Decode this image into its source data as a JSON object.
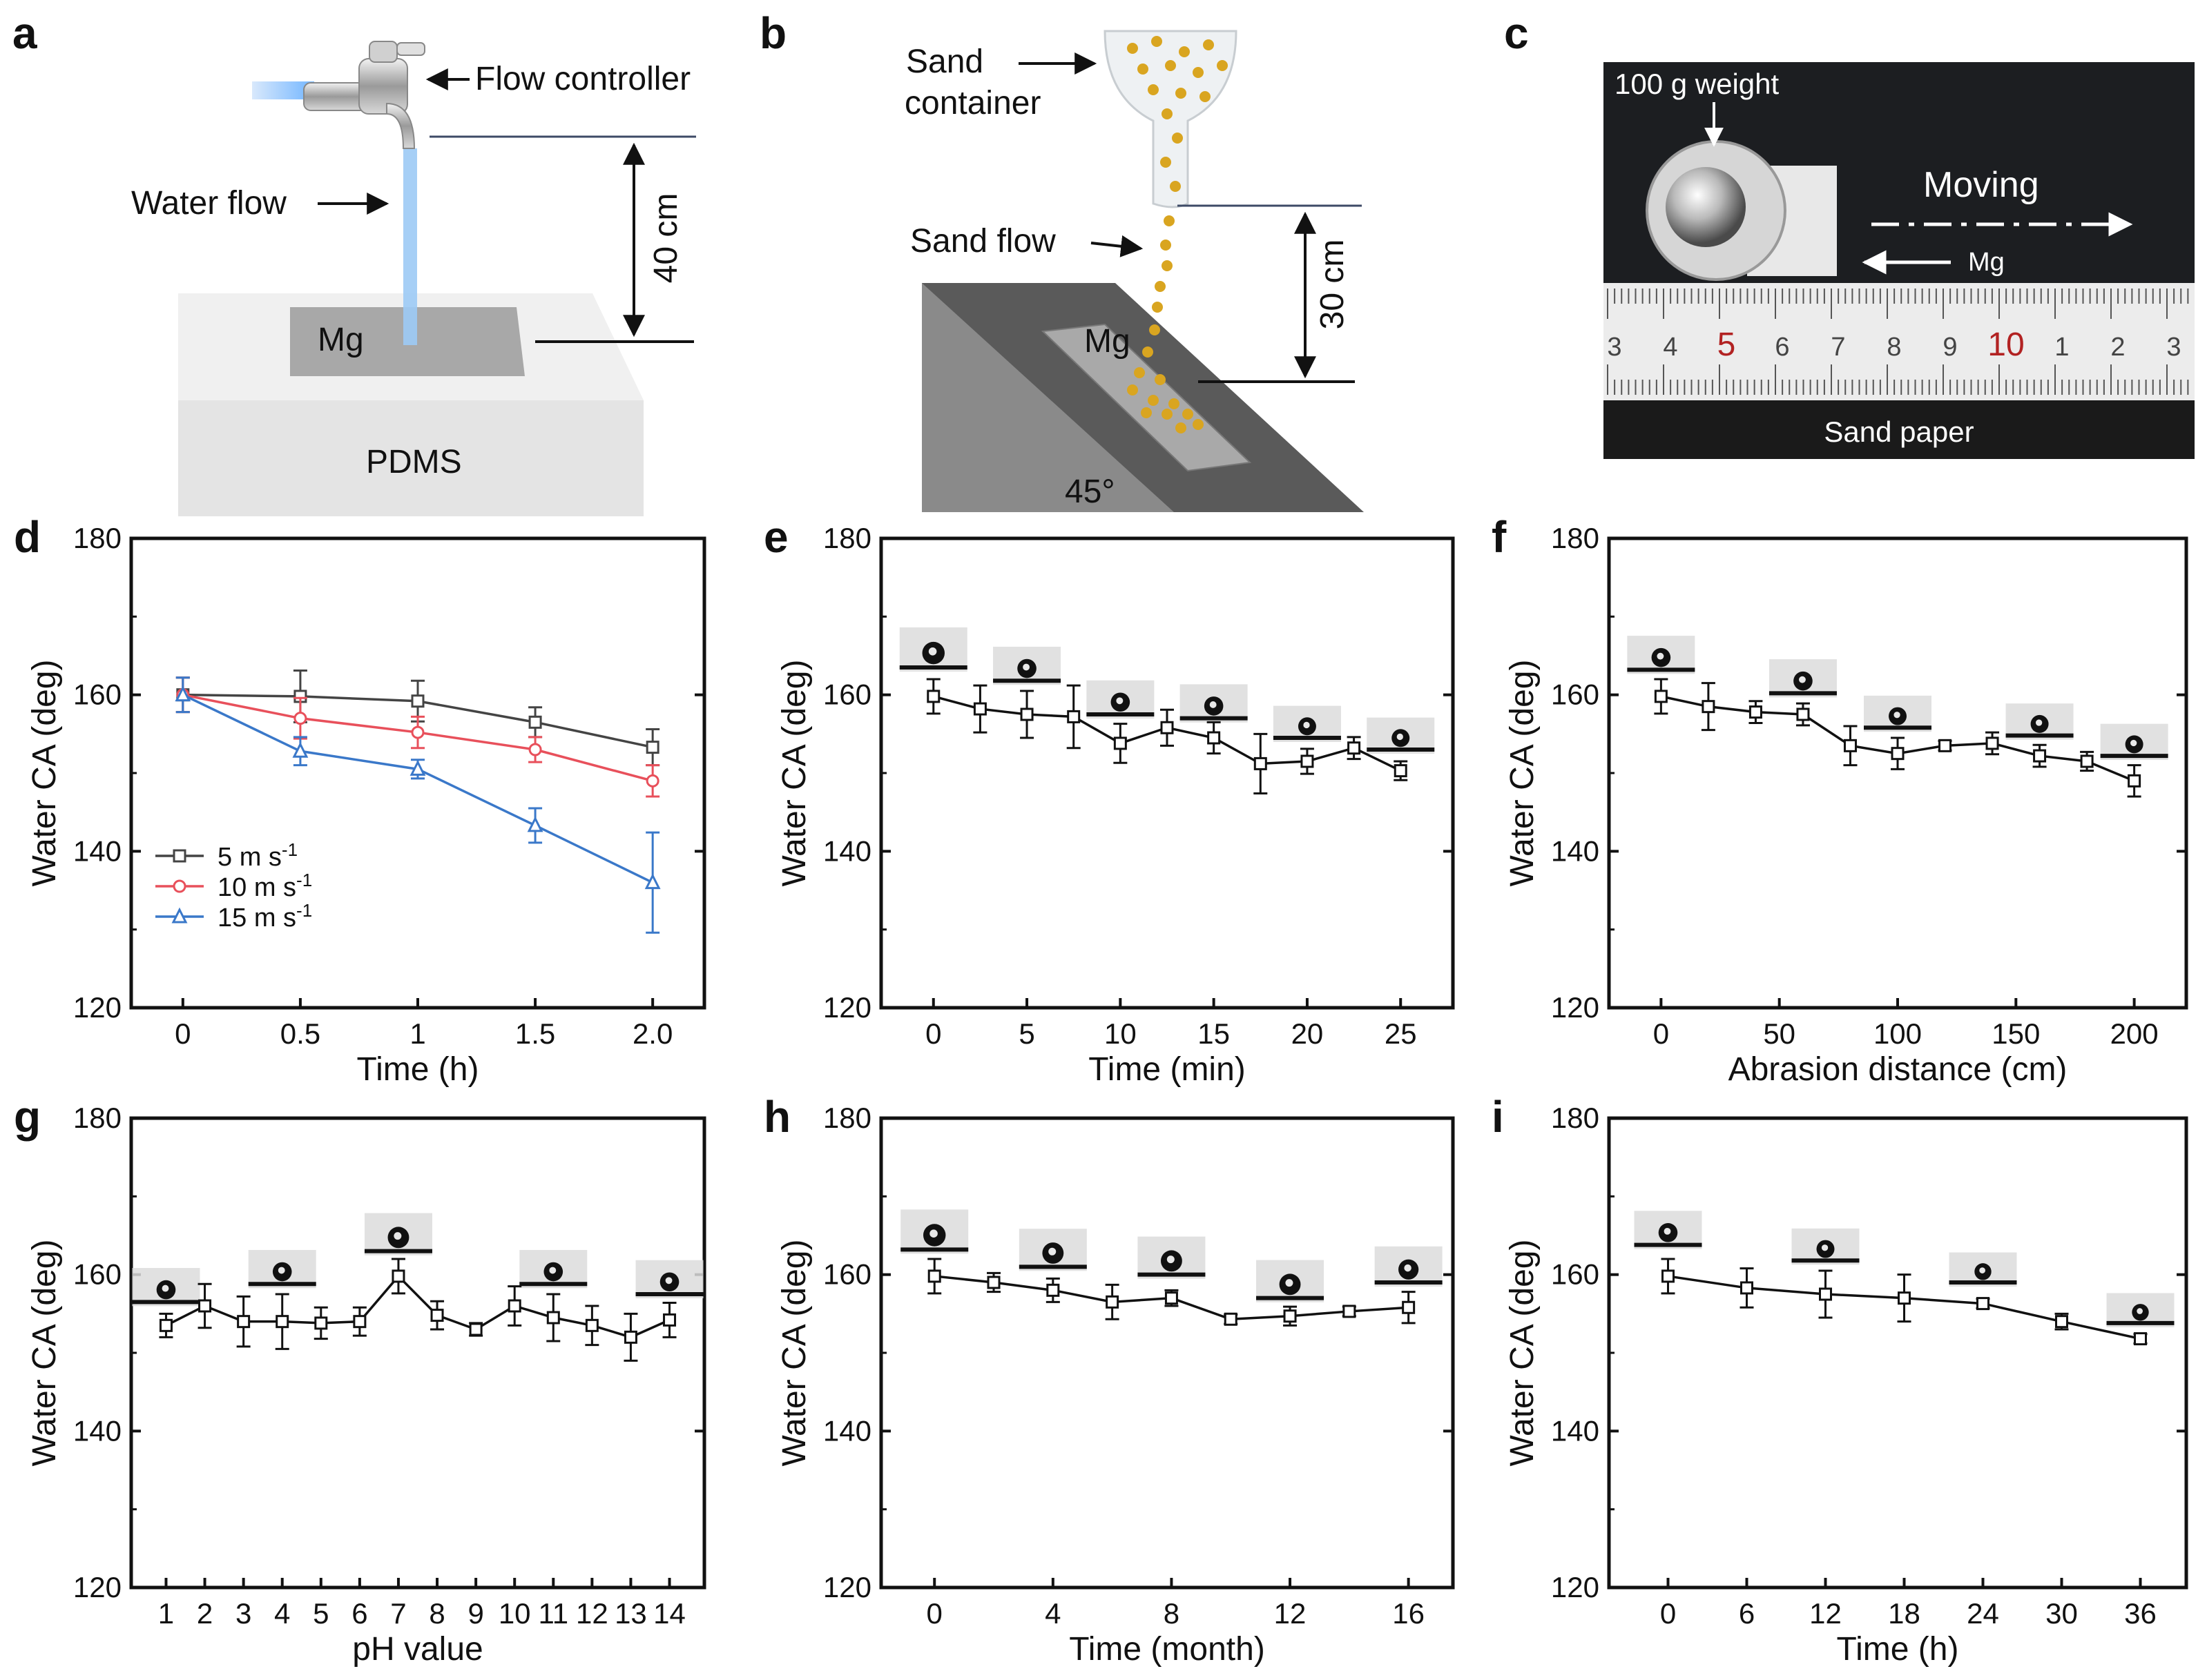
{
  "schematics": {
    "a": {
      "letter": "a",
      "flow_controller": "Flow controller",
      "water_flow": "Water flow",
      "height": "40 cm",
      "sample": "Mg",
      "base": "PDMS"
    },
    "b": {
      "letter": "b",
      "sand_container_l1": "Sand",
      "sand_container_l2": "container",
      "sand_flow": "Sand flow",
      "height": "30 cm",
      "sample": "Mg",
      "angle": "45°"
    },
    "c": {
      "letter": "c",
      "weight": "100 g  weight",
      "moving": "Moving",
      "sample": "Mg",
      "sand_paper": "Sand paper",
      "ruler_ticks": [
        "3",
        "4",
        "5",
        "6",
        "7",
        "8",
        "9",
        "10",
        "1",
        "2",
        "3"
      ]
    }
  },
  "chart_data": [
    {
      "id": "d",
      "letter": "d",
      "type": "line",
      "ylabel": "Water CA (deg)",
      "xlabel": "Time (h)",
      "ylim": [
        120,
        180
      ],
      "yticks": [
        "120",
        "140",
        "160",
        "180"
      ],
      "xticks": [
        {
          "v": 0,
          "t": "0"
        },
        {
          "v": 0.5,
          "t": "0.5"
        },
        {
          "v": 1,
          "t": "1"
        },
        {
          "v": 1.5,
          "t": "1.5"
        },
        {
          "v": 2,
          "t": "2.0"
        }
      ],
      "xlim": [
        -0.22,
        2.22
      ],
      "x": [
        0,
        0.5,
        1,
        1.5,
        2
      ],
      "series": [
        {
          "name": "5 m s-1",
          "name_main": "5 m s",
          "name_sup": "-1",
          "color": "#444444",
          "marker": "square",
          "values": [
            160,
            159.8,
            159.2,
            156.5,
            153.3
          ],
          "errors": [
            2.2,
            3.3,
            2.6,
            1.9,
            2.3
          ]
        },
        {
          "name": "10 m s-1",
          "name_main": "10 m s",
          "name_sup": "-1",
          "color": "#e8505b",
          "marker": "circle",
          "values": [
            160,
            157,
            155.2,
            153,
            149
          ],
          "errors": [
            2.2,
            2.6,
            2,
            1.6,
            2
          ]
        },
        {
          "name": "15 m s-1",
          "name_main": "15 m s",
          "name_sup": "-1",
          "color": "#3a78c9",
          "marker": "triangle",
          "values": [
            160,
            152.8,
            150.5,
            143.3,
            136
          ],
          "errors": [
            2.2,
            1.8,
            1.2,
            2.2,
            6.4
          ]
        }
      ]
    },
    {
      "id": "e",
      "letter": "e",
      "type": "line",
      "ylabel": "Water CA (deg)",
      "xlabel": "Time (min)",
      "ylim": [
        120,
        180
      ],
      "yticks": [
        "120",
        "140",
        "160",
        "180"
      ],
      "xticks": [
        {
          "v": 0,
          "t": "0"
        },
        {
          "v": 5,
          "t": "5"
        },
        {
          "v": 10,
          "t": "10"
        },
        {
          "v": 15,
          "t": "15"
        },
        {
          "v": 20,
          "t": "20"
        },
        {
          "v": 25,
          "t": "25"
        }
      ],
      "xlim": [
        -2.8,
        27.8
      ],
      "x": [
        0,
        2.5,
        5,
        7.5,
        10,
        12.5,
        15,
        17.5,
        20,
        22.5,
        25
      ],
      "series": [
        {
          "name": "CA",
          "color": "#111111",
          "marker": "square",
          "values": [
            159.8,
            158.2,
            157.5,
            157.2,
            153.8,
            155.8,
            154.5,
            151.2,
            151.5,
            153.2,
            150.3
          ],
          "errors": [
            2.2,
            3,
            3,
            4,
            2.5,
            2.3,
            2,
            3.8,
            1.6,
            1.4,
            1.2
          ]
        }
      ],
      "droplets": [
        {
          "x": 0,
          "y": 163.5,
          "h": 1
        },
        {
          "x": 5,
          "y": 161.8,
          "h": 0.85
        },
        {
          "x": 10,
          "y": 157.5,
          "h": 0.85
        },
        {
          "x": 15,
          "y": 157.0,
          "h": 0.85
        },
        {
          "x": 20,
          "y": 154.5,
          "h": 0.8
        },
        {
          "x": 25,
          "y": 153.0,
          "h": 0.8
        }
      ]
    },
    {
      "id": "f",
      "letter": "f",
      "type": "line",
      "ylabel": "Water CA (deg)",
      "xlabel": "Abrasion distance  (cm)",
      "ylim": [
        120,
        180
      ],
      "yticks": [
        "120",
        "140",
        "160",
        "180"
      ],
      "xticks": [
        {
          "v": 0,
          "t": "0"
        },
        {
          "v": 50,
          "t": "50"
        },
        {
          "v": 100,
          "t": "100"
        },
        {
          "v": 150,
          "t": "150"
        },
        {
          "v": 200,
          "t": "200"
        }
      ],
      "xlim": [
        -22,
        222
      ],
      "x": [
        0,
        20,
        40,
        60,
        80,
        100,
        120,
        140,
        160,
        180,
        200
      ],
      "series": [
        {
          "name": "CA",
          "color": "#111111",
          "marker": "square",
          "values": [
            159.8,
            158.5,
            157.8,
            157.5,
            153.5,
            152.5,
            153.5,
            153.8,
            152.2,
            151.5,
            149
          ],
          "errors": [
            2.2,
            3,
            1.4,
            1.4,
            2.5,
            2,
            0.6,
            1.4,
            1.4,
            1.2,
            2
          ]
        }
      ],
      "droplets": [
        {
          "x": 0,
          "y": 163.2,
          "h": 0.85
        },
        {
          "x": 60,
          "y": 160.2,
          "h": 0.85
        },
        {
          "x": 100,
          "y": 155.8,
          "h": 0.8
        },
        {
          "x": 160,
          "y": 154.8,
          "h": 0.8
        },
        {
          "x": 200,
          "y": 152.2,
          "h": 0.8
        }
      ]
    },
    {
      "id": "g",
      "letter": "g",
      "type": "line",
      "ylabel": "Water CA (deg)",
      "xlabel": "pH value",
      "ylim": [
        120,
        180
      ],
      "yticks": [
        "120",
        "140",
        "160",
        "180"
      ],
      "xticks": [
        {
          "v": 1,
          "t": "1"
        },
        {
          "v": 2,
          "t": "2"
        },
        {
          "v": 3,
          "t": "3"
        },
        {
          "v": 4,
          "t": "4"
        },
        {
          "v": 5,
          "t": "5"
        },
        {
          "v": 6,
          "t": "6"
        },
        {
          "v": 7,
          "t": "7"
        },
        {
          "v": 8,
          "t": "8"
        },
        {
          "v": 9,
          "t": "9"
        },
        {
          "v": 10,
          "t": "10"
        },
        {
          "v": 11,
          "t": "11"
        },
        {
          "v": 12,
          "t": "12"
        },
        {
          "v": 13,
          "t": "13"
        },
        {
          "v": 14,
          "t": "14"
        }
      ],
      "xlim": [
        0.1,
        14.9
      ],
      "x": [
        1,
        2,
        3,
        4,
        5,
        6,
        7,
        8,
        9,
        10,
        11,
        12,
        13,
        14
      ],
      "series": [
        {
          "name": "CA",
          "color": "#111111",
          "marker": "square",
          "values": [
            153.5,
            156,
            154,
            154,
            153.8,
            154,
            159.8,
            154.8,
            153,
            156,
            154.5,
            153.5,
            152,
            154.2
          ],
          "errors": [
            1.5,
            2.8,
            3.2,
            3.5,
            2,
            1.8,
            2.2,
            1.8,
            0.8,
            2.5,
            3,
            2.5,
            3,
            2.2
          ]
        }
      ],
      "droplets": [
        {
          "x": 1,
          "y": 156.5,
          "h": 0.85
        },
        {
          "x": 4,
          "y": 158.8,
          "h": 0.85
        },
        {
          "x": 7,
          "y": 163.0,
          "h": 0.95
        },
        {
          "x": 11,
          "y": 158.8,
          "h": 0.85
        },
        {
          "x": 14,
          "y": 157.5,
          "h": 0.85
        }
      ]
    },
    {
      "id": "h",
      "letter": "h",
      "type": "line",
      "ylabel": "Water CA (deg)",
      "xlabel": "Time (month)",
      "ylim": [
        120,
        180
      ],
      "yticks": [
        "120",
        "140",
        "160",
        "180"
      ],
      "xticks": [
        {
          "v": 0,
          "t": "0"
        },
        {
          "v": 4,
          "t": "4"
        },
        {
          "v": 8,
          "t": "8"
        },
        {
          "v": 12,
          "t": "12"
        },
        {
          "v": 16,
          "t": "16"
        }
      ],
      "xlim": [
        -1.8,
        17.5
      ],
      "x": [
        0,
        2,
        4,
        6,
        8,
        10,
        12,
        14,
        16
      ],
      "series": [
        {
          "name": "CA",
          "color": "#111111",
          "marker": "square",
          "values": [
            159.8,
            159,
            158,
            156.5,
            157,
            154.3,
            154.7,
            155.3,
            155.8
          ],
          "errors": [
            2.2,
            1.2,
            1.5,
            2.2,
            1,
            0.6,
            1.2,
            0.6,
            2
          ]
        }
      ],
      "droplets": [
        {
          "x": 0,
          "y": 163.2,
          "h": 1
        },
        {
          "x": 4,
          "y": 161.0,
          "h": 0.95
        },
        {
          "x": 8,
          "y": 160.0,
          "h": 0.95
        },
        {
          "x": 12,
          "y": 157.0,
          "h": 0.95
        },
        {
          "x": 16,
          "y": 159.0,
          "h": 0.9
        }
      ]
    },
    {
      "id": "i",
      "letter": "i",
      "type": "line",
      "ylabel": "Water CA (deg)",
      "xlabel": "Time (h)",
      "ylim": [
        120,
        180
      ],
      "yticks": [
        "120",
        "140",
        "160",
        "180"
      ],
      "xticks": [
        {
          "v": 0,
          "t": "0"
        },
        {
          "v": 6,
          "t": "6"
        },
        {
          "v": 12,
          "t": "12"
        },
        {
          "v": 18,
          "t": "18"
        },
        {
          "v": 24,
          "t": "24"
        },
        {
          "v": 30,
          "t": "30"
        },
        {
          "v": 36,
          "t": "36"
        }
      ],
      "xlim": [
        -4.5,
        39.5
      ],
      "x": [
        0,
        6,
        12,
        18,
        24,
        30,
        36
      ],
      "series": [
        {
          "name": "CA",
          "color": "#111111",
          "marker": "square",
          "values": [
            159.8,
            158.3,
            157.5,
            157,
            156.3,
            154,
            151.8
          ],
          "errors": [
            2.2,
            2.5,
            3,
            3,
            0.6,
            1,
            0.6
          ]
        }
      ],
      "droplets": [
        {
          "x": 0,
          "y": 163.8,
          "h": 0.85
        },
        {
          "x": 12,
          "y": 161.8,
          "h": 0.8
        },
        {
          "x": 24,
          "y": 159.0,
          "h": 0.75
        },
        {
          "x": 36,
          "y": 153.8,
          "h": 0.75
        }
      ]
    }
  ]
}
